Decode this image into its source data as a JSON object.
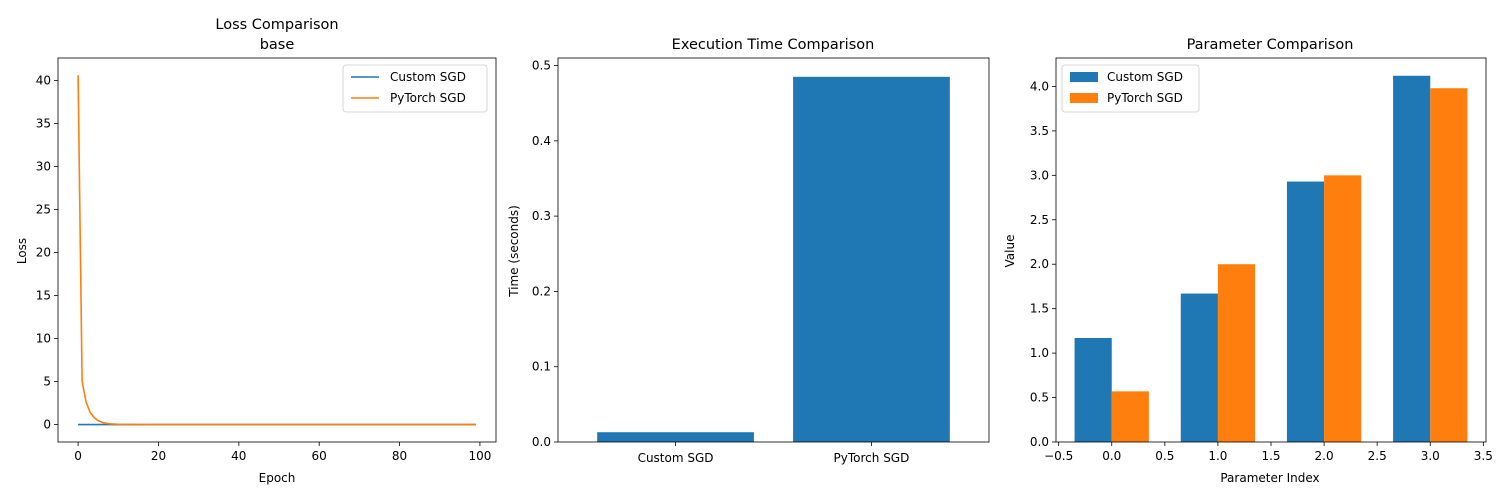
{
  "chart_data": [
    {
      "type": "line",
      "title": "Loss Comparison",
      "subtitle": "base",
      "xlabel": "Epoch",
      "ylabel": "Loss",
      "xlim": [
        -5,
        104
      ],
      "ylim": [
        -2.03,
        42.6
      ],
      "xticks": [
        0,
        20,
        40,
        60,
        80,
        100
      ],
      "yticks": [
        0,
        5,
        10,
        15,
        20,
        25,
        30,
        35,
        40
      ],
      "grid": false,
      "legend": "top-right",
      "series": [
        {
          "name": "Custom SGD",
          "color": "#1f77b4",
          "x": [
            0,
            99
          ],
          "y": [
            0.0,
            0.0
          ]
        },
        {
          "name": "PyTorch SGD",
          "color": "#ff7f0e",
          "x": [
            0,
            1,
            2,
            3,
            4,
            5,
            6,
            7,
            8,
            10,
            12,
            15,
            20,
            30,
            99
          ],
          "y": [
            40.6,
            5.0,
            2.6,
            1.4,
            0.8,
            0.45,
            0.25,
            0.14,
            0.08,
            0.03,
            0.01,
            0.0,
            0.0,
            0.0,
            0.0
          ]
        }
      ]
    },
    {
      "type": "bar",
      "title": "Execution Time Comparison",
      "xlabel": "",
      "ylabel": "Time (seconds)",
      "categories": [
        "Custom SGD",
        "PyTorch SGD"
      ],
      "values": [
        0.013,
        0.485
      ],
      "ylim": [
        0,
        0.51
      ],
      "yticks": [
        0.0,
        0.1,
        0.2,
        0.3,
        0.4,
        0.5
      ],
      "color": "#1f77b4",
      "grid": false
    },
    {
      "type": "bar",
      "title": "Parameter Comparison",
      "xlabel": "Parameter Index",
      "ylabel": "Value",
      "x": [
        0,
        1,
        2,
        3
      ],
      "xlim": [
        -0.525,
        3.525
      ],
      "ylim": [
        0,
        4.32
      ],
      "xticks": [
        -0.5,
        0.0,
        0.5,
        1.0,
        1.5,
        2.0,
        2.5,
        3.0,
        3.5
      ],
      "yticks": [
        0.0,
        0.5,
        1.0,
        1.5,
        2.0,
        2.5,
        3.0,
        3.5,
        4.0
      ],
      "bar_width": 0.35,
      "grid": false,
      "legend": "top-left",
      "series": [
        {
          "name": "Custom SGD",
          "color": "#1f77b4",
          "values": [
            1.17,
            1.67,
            2.93,
            4.12
          ]
        },
        {
          "name": "PyTorch SGD",
          "color": "#ff7f0e",
          "values": [
            0.57,
            2.0,
            3.0,
            3.98
          ]
        }
      ]
    }
  ]
}
